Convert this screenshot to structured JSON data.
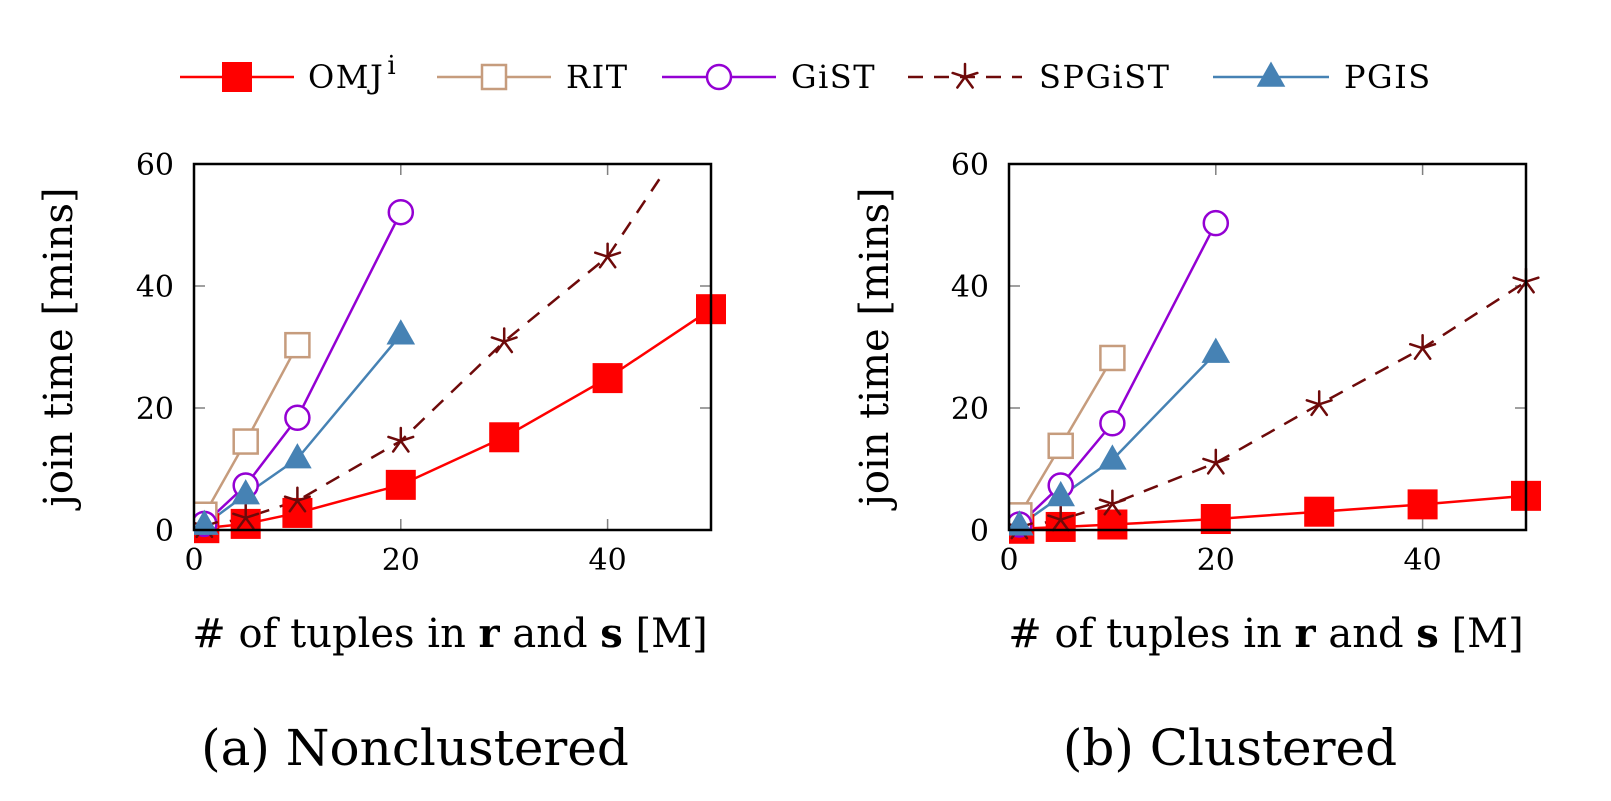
{
  "legend": {
    "items": [
      {
        "key": "omj",
        "label": "OMJ",
        "superscript": "i"
      },
      {
        "key": "rit",
        "label": "RIT"
      },
      {
        "key": "gist",
        "label": "GiST"
      },
      {
        "key": "spgist",
        "label": "SPGiST"
      },
      {
        "key": "pgis",
        "label": "PGIS"
      }
    ]
  },
  "chart_data": [
    {
      "type": "line",
      "caption": "(a) Nonclustered",
      "xlabel_parts": [
        "# of tuples in ",
        "r",
        " and ",
        "s",
        " [M]"
      ],
      "ylabel": "join time [mins]",
      "xlim": [
        0,
        50
      ],
      "ylim": [
        0,
        60
      ],
      "xticks": [
        0,
        20,
        40
      ],
      "yticks": [
        0,
        20,
        40,
        60
      ],
      "grid": false,
      "legend_position": "top",
      "series": [
        {
          "name": "OMJi",
          "key": "omj",
          "color": "#ff0000",
          "marker": "filled-square",
          "dash": "solid",
          "x": [
            1,
            5,
            10,
            20,
            30,
            40,
            50
          ],
          "y": [
            0.3,
            1.0,
            2.8,
            7.4,
            15.2,
            24.9,
            36.2
          ]
        },
        {
          "name": "RIT",
          "key": "rit",
          "color": "#c69c7d",
          "marker": "open-square",
          "dash": "solid",
          "x": [
            1,
            5,
            10
          ],
          "y": [
            2.5,
            14.5,
            30.3
          ]
        },
        {
          "name": "GiST",
          "key": "gist",
          "color": "#9400d3",
          "marker": "open-circle",
          "dash": "solid",
          "x": [
            1,
            5,
            10,
            20
          ],
          "y": [
            1.0,
            7.3,
            18.4,
            52.1
          ]
        },
        {
          "name": "SPGiST",
          "key": "spgist",
          "color": "#6e0a0a",
          "marker": "star",
          "dash": "dashed",
          "x": [
            1,
            5,
            10,
            20,
            30,
            40
          ],
          "y": [
            0.6,
            2.0,
            4.8,
            14.6,
            30.9,
            44.8
          ],
          "continues_to": [
            45,
            57.5
          ]
        },
        {
          "name": "PGIS",
          "key": "pgis",
          "color": "#4682b4",
          "marker": "filled-triangle",
          "dash": "solid",
          "x": [
            1,
            5,
            10,
            20
          ],
          "y": [
            0.8,
            5.8,
            11.7,
            32.0
          ]
        }
      ]
    },
    {
      "type": "line",
      "caption": "(b) Clustered",
      "xlabel_parts": [
        "# of tuples in ",
        "r",
        " and ",
        "s",
        " [M]"
      ],
      "ylabel": "join time [mins]",
      "xlim": [
        0,
        50
      ],
      "ylim": [
        0,
        60
      ],
      "xticks": [
        0,
        20,
        40
      ],
      "yticks": [
        0,
        20,
        40,
        60
      ],
      "grid": false,
      "legend_position": "top",
      "series": [
        {
          "name": "OMJi",
          "key": "omj",
          "color": "#ff0000",
          "marker": "filled-square",
          "dash": "solid",
          "x": [
            1,
            5,
            10,
            20,
            30,
            40,
            50
          ],
          "y": [
            0.2,
            0.5,
            0.9,
            1.8,
            3.0,
            4.2,
            5.6
          ]
        },
        {
          "name": "RIT",
          "key": "rit",
          "color": "#c69c7d",
          "marker": "open-square",
          "dash": "solid",
          "x": [
            1,
            5,
            10
          ],
          "y": [
            2.4,
            13.8,
            28.2
          ]
        },
        {
          "name": "GiST",
          "key": "gist",
          "color": "#9400d3",
          "marker": "open-circle",
          "dash": "solid",
          "x": [
            1,
            5,
            10,
            20
          ],
          "y": [
            0.9,
            7.3,
            17.5,
            50.3
          ]
        },
        {
          "name": "SPGiST",
          "key": "spgist",
          "color": "#6e0a0a",
          "marker": "star",
          "dash": "dashed",
          "x": [
            1,
            5,
            10,
            20,
            30,
            40,
            50
          ],
          "y": [
            0.4,
            1.7,
            4.3,
            11.0,
            20.6,
            29.8,
            40.7
          ]
        },
        {
          "name": "PGIS",
          "key": "pgis",
          "color": "#4682b4",
          "marker": "filled-triangle",
          "dash": "solid",
          "x": [
            1,
            5,
            10,
            20
          ],
          "y": [
            0.7,
            5.5,
            11.5,
            29.0
          ]
        }
      ]
    }
  ]
}
